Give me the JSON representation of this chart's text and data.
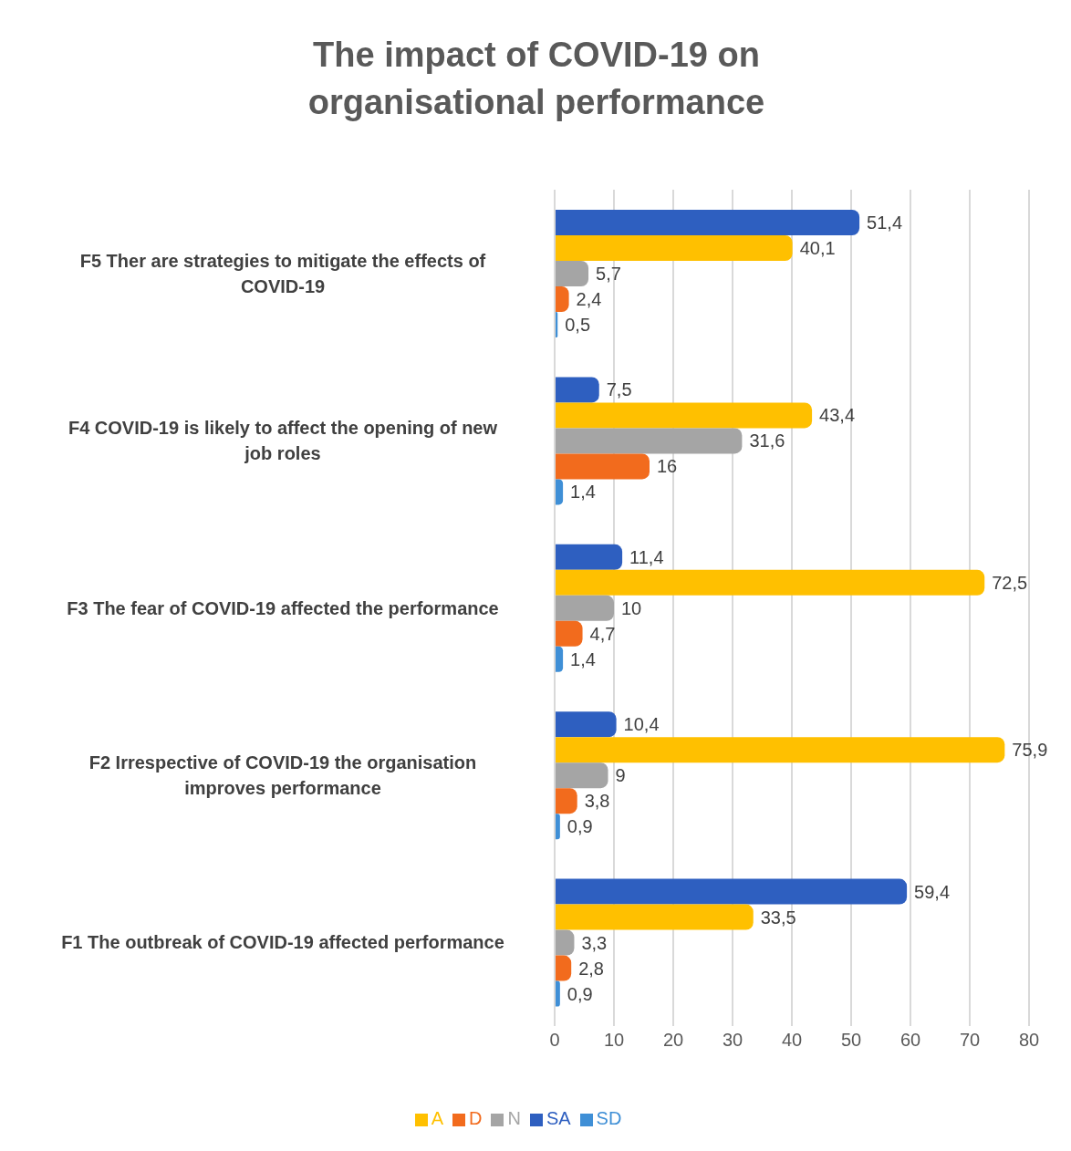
{
  "chart_data": {
    "type": "bar",
    "orientation": "horizontal",
    "title": "The impact of COVID-19 on organisational performance",
    "categories": [
      "F5 Ther are strategies to mitigate the effects of COVID-19",
      "F4 COVID-19 is likely to affect the opening of new job roles",
      "F3 The fear of COVID-19 affected the performance",
      "F2 Irrespective of COVID-19 the organisation improves performance",
      "F1 The outbreak of COVID-19 affected performance"
    ],
    "series": [
      {
        "name": "SA",
        "color": "#2e5fc0",
        "values": [
          51.4,
          7.5,
          11.4,
          10.4,
          59.4
        ],
        "value_labels": [
          "51,4",
          "7,5",
          "11,4",
          "10,4",
          "59,4"
        ]
      },
      {
        "name": "A",
        "color": "#ffc000",
        "values": [
          40.1,
          43.4,
          72.5,
          75.9,
          33.5
        ],
        "value_labels": [
          "40,1",
          "43,4",
          "72,5",
          "75,9",
          "33,5"
        ]
      },
      {
        "name": "N",
        "color": "#a5a5a5",
        "values": [
          5.7,
          31.6,
          10,
          9,
          3.3
        ],
        "value_labels": [
          "5,7",
          "31,6",
          "10",
          "9",
          "3,3"
        ]
      },
      {
        "name": "D",
        "color": "#f26b1d",
        "values": [
          2.4,
          16,
          4.7,
          3.8,
          2.8
        ],
        "value_labels": [
          "2,4",
          "16",
          "4,7",
          "3,8",
          "2,8"
        ]
      },
      {
        "name": "SD",
        "color": "#3f8fd6",
        "values": [
          0.5,
          1.4,
          1.4,
          0.9,
          0.9
        ],
        "value_labels": [
          "0,5",
          "1,4",
          "1,4",
          "0,9",
          "0,9"
        ]
      }
    ],
    "xlim": [
      0,
      80
    ],
    "xticks": [
      0,
      10,
      20,
      30,
      40,
      50,
      60,
      70,
      80
    ],
    "grid": "x",
    "legend": "bottom"
  }
}
